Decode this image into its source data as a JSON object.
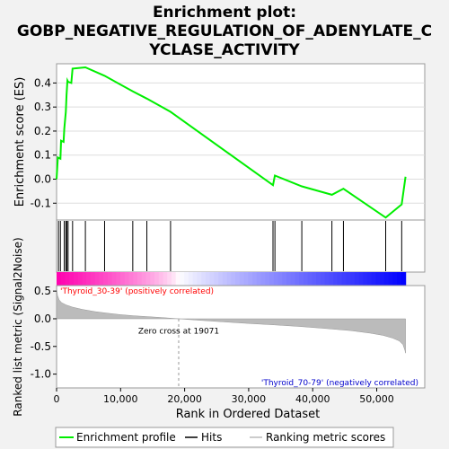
{
  "chart_data": {
    "type": "line",
    "title_lines": [
      "Enrichment plot:",
      "GOBP_NEGATIVE_REGULATION_OF_ADENYLATE_C",
      "YCLASE_ACTIVITY"
    ],
    "es_panel": {
      "ylabel": "Enrichment score (ES)",
      "ylim": [
        -0.17,
        0.48
      ],
      "yticks": [
        -0.1,
        0.0,
        0.1,
        0.2,
        0.3,
        0.4
      ],
      "ytick_labels": [
        "-0.1",
        "0.0",
        "0.1",
        "0.2",
        "0.3",
        "0.4"
      ],
      "series": [
        {
          "name": "Enrichment profile",
          "color": "#00ee00",
          "x": [
            0,
            200,
            600,
            700,
            1100,
            1200,
            1450,
            1550,
            1700,
            1800,
            2300,
            2500,
            4500,
            7500,
            11900,
            14100,
            17800,
            33800,
            34100,
            38300,
            43000,
            44800,
            51400,
            53900,
            54500
          ],
          "y": [
            0.0,
            0.09,
            0.085,
            0.16,
            0.155,
            0.21,
            0.28,
            0.35,
            0.41,
            0.405,
            0.4,
            0.46,
            0.465,
            0.43,
            0.365,
            0.335,
            0.28,
            -0.025,
            0.015,
            -0.03,
            -0.065,
            -0.04,
            -0.16,
            -0.105,
            0.01
          ]
        }
      ]
    },
    "hits": {
      "name": "Hits",
      "positions": [
        300,
        600,
        1200,
        1450,
        1600,
        1800,
        2500,
        4500,
        7500,
        11900,
        14100,
        17800,
        33800,
        34100,
        38300,
        43000,
        44800,
        51400,
        53900
      ]
    },
    "ranking_panel": {
      "ylabel": "Ranked list metric (Signal2Noise)",
      "xlabel": "Rank in Ordered Dataset",
      "ylim": [
        -1.25,
        0.6
      ],
      "yticks": [
        -1.0,
        -0.5,
        0.0,
        0.5
      ],
      "ytick_labels": [
        "-1.0",
        "-0.5",
        "0.0",
        "0.5"
      ],
      "xlim": [
        0,
        57500
      ],
      "xticks": [
        0,
        10000,
        20000,
        30000,
        40000,
        50000
      ],
      "xtick_labels": [
        "0",
        "10,000",
        "20,000",
        "30,000",
        "40,000",
        "50,000"
      ],
      "series": [
        {
          "name": "Ranking metric scores",
          "x": [
            0,
            150,
            400,
            800,
            1500,
            2500,
            4000,
            6000,
            8000,
            10000,
            12000,
            14000,
            16000,
            18000,
            19071,
            22000,
            26000,
            30000,
            34000,
            38000,
            42000,
            46000,
            49000,
            51000,
            52500,
            53500,
            54100,
            54400,
            54500
          ],
          "y": [
            0.55,
            0.42,
            0.34,
            0.29,
            0.25,
            0.21,
            0.17,
            0.13,
            0.1,
            0.075,
            0.055,
            0.04,
            0.025,
            0.01,
            0.0,
            -0.025,
            -0.055,
            -0.085,
            -0.11,
            -0.14,
            -0.175,
            -0.215,
            -0.26,
            -0.3,
            -0.35,
            -0.4,
            -0.47,
            -0.57,
            -0.62
          ]
        }
      ],
      "label_positive": "'Thyroid_30-39' (positively correlated)",
      "label_negative": "'Thyroid_70-79' (negatively correlated)",
      "zero_cross_label": "Zero cross at 19071",
      "zero_cross": 19071
    },
    "legend": {
      "placement": "bottom",
      "items": [
        {
          "label": "Enrichment profile",
          "color": "#00ee00"
        },
        {
          "label": "Hits",
          "color": "#000000"
        },
        {
          "label": "Ranking metric scores",
          "color": "#bbbbbb"
        }
      ]
    },
    "colors": {
      "positive": "#ff0000",
      "negative": "#0000ff",
      "neutral": "#ffffff",
      "label_positive": "#ff0000",
      "label_negative": "#0000cc"
    }
  }
}
